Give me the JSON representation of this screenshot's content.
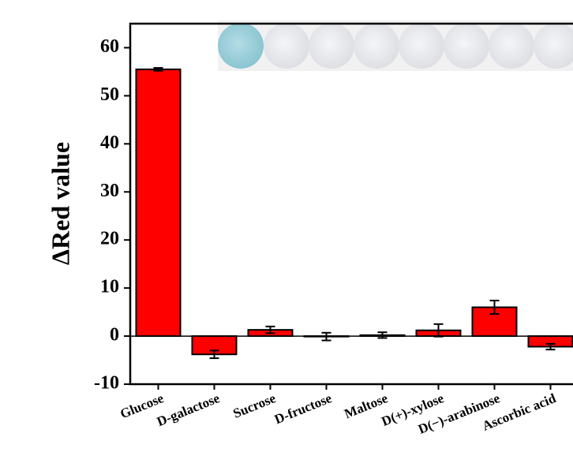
{
  "chart_data": {
    "type": "bar",
    "y_label": "ΔRed value",
    "categories": [
      "Glucose",
      "D-galactose",
      "Sucrose",
      "D-fructose",
      "Maltose",
      "D(+)-xylose",
      "D(−)-arabinose",
      "Ascorbic acid"
    ],
    "values": [
      55.5,
      -3.8,
      1.3,
      -0.1,
      0.2,
      1.2,
      6.0,
      -2.2
    ],
    "errors": [
      0.3,
      0.8,
      0.7,
      0.8,
      0.6,
      1.3,
      1.4,
      0.6
    ],
    "color": "#ff0000",
    "ylim": [
      -10,
      65
    ],
    "yticks": [
      -10,
      0,
      10,
      20,
      30,
      40,
      50,
      60
    ]
  }
}
